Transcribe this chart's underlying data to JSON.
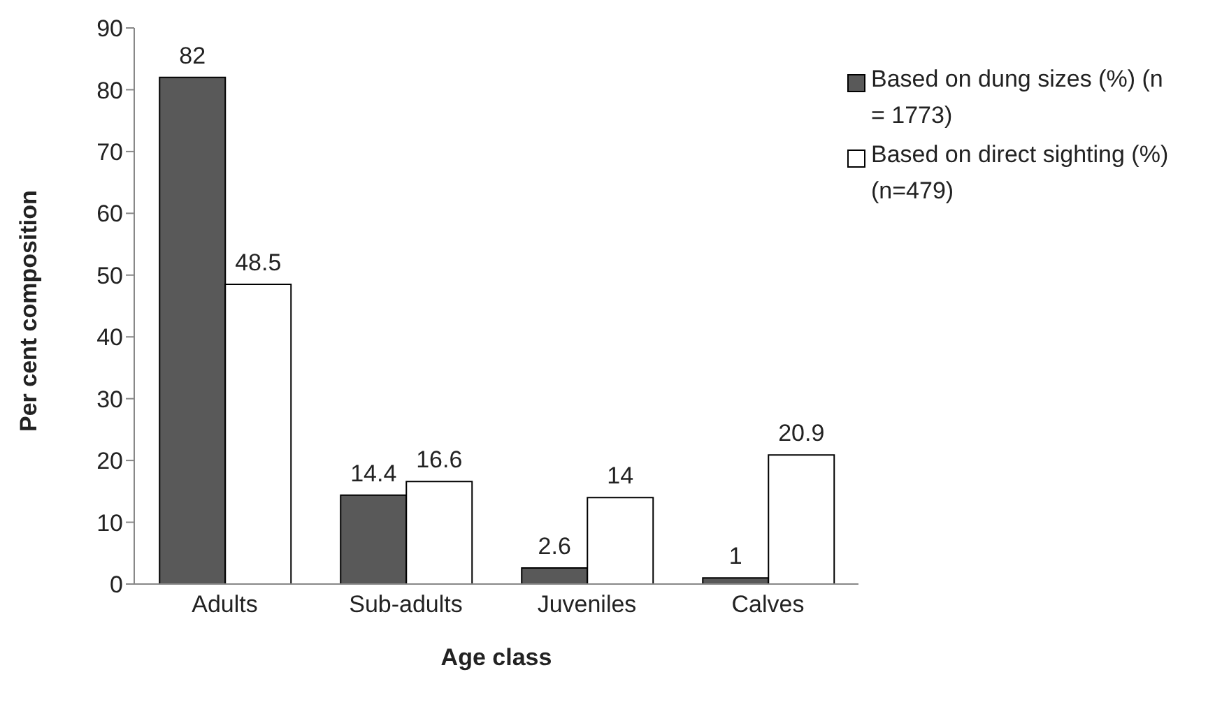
{
  "chart_data": {
    "type": "bar",
    "xlabel": "Age class",
    "ylabel": "Per cent composition",
    "categories": [
      "Adults",
      "Sub-adults",
      "Juveniles",
      "Calves"
    ],
    "series": [
      {
        "name": "Based on dung sizes (%) (n = 1773)",
        "color": "#595959",
        "values": [
          82,
          14.4,
          2.6,
          1
        ]
      },
      {
        "name": "Based on direct sighting (%)(n=479)",
        "color": "#ffffff",
        "values": [
          48.5,
          16.6,
          14,
          20.9
        ]
      }
    ],
    "ylim": [
      0,
      90
    ],
    "yticks": [
      0,
      10,
      20,
      30,
      40,
      50,
      60,
      70,
      80,
      90
    ],
    "grid": false,
    "legend": "top right",
    "data_labels": true
  }
}
